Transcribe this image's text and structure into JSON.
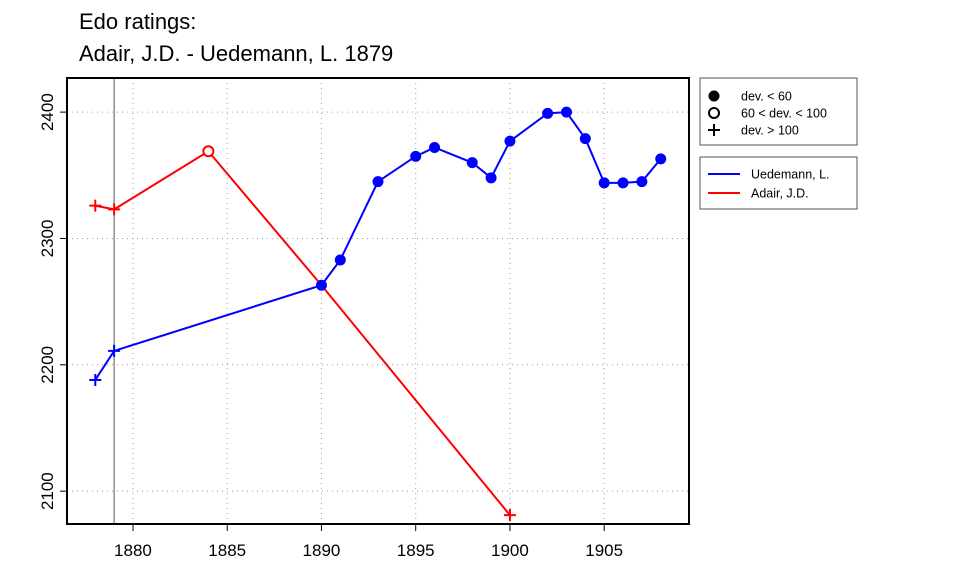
{
  "chart_data": {
    "type": "line",
    "title_lines": [
      "Edo ratings:",
      "Adair, J.D. - Uedemann, L. 1879"
    ],
    "xlabel": "",
    "ylabel": "",
    "xlim": [
      1876.5,
      1909.5
    ],
    "ylim": [
      2074,
      2427
    ],
    "x_ticks": [
      1880,
      1885,
      1890,
      1895,
      1900,
      1905
    ],
    "y_ticks": [
      2100,
      2200,
      2300,
      2400
    ],
    "grid": true,
    "reference_line_x": 1879,
    "marker_legend": [
      {
        "marker": "filled-circle",
        "label": "dev. < 60"
      },
      {
        "marker": "open-circle",
        "label": "60 < dev. < 100"
      },
      {
        "marker": "plus",
        "label": "dev. > 100"
      }
    ],
    "series_legend_placement": "right",
    "series": [
      {
        "name": "Uedemann, L.",
        "color": "#0000ff",
        "points": [
          {
            "x": 1878,
            "y": 2188,
            "marker": "plus"
          },
          {
            "x": 1879,
            "y": 2211,
            "marker": "plus"
          },
          {
            "x": 1890,
            "y": 2263,
            "marker": "filled-circle"
          },
          {
            "x": 1891,
            "y": 2283,
            "marker": "filled-circle"
          },
          {
            "x": 1893,
            "y": 2345,
            "marker": "filled-circle"
          },
          {
            "x": 1895,
            "y": 2365,
            "marker": "filled-circle"
          },
          {
            "x": 1896,
            "y": 2372,
            "marker": "filled-circle"
          },
          {
            "x": 1898,
            "y": 2360,
            "marker": "filled-circle"
          },
          {
            "x": 1899,
            "y": 2348,
            "marker": "filled-circle"
          },
          {
            "x": 1900,
            "y": 2377,
            "marker": "filled-circle"
          },
          {
            "x": 1902,
            "y": 2399,
            "marker": "filled-circle"
          },
          {
            "x": 1903,
            "y": 2400,
            "marker": "filled-circle"
          },
          {
            "x": 1904,
            "y": 2379,
            "marker": "filled-circle"
          },
          {
            "x": 1905,
            "y": 2344,
            "marker": "filled-circle"
          },
          {
            "x": 1906,
            "y": 2344,
            "marker": "filled-circle"
          },
          {
            "x": 1907,
            "y": 2345,
            "marker": "filled-circle"
          },
          {
            "x": 1908,
            "y": 2363,
            "marker": "filled-circle"
          }
        ]
      },
      {
        "name": "Adair, J.D.",
        "color": "#ff0000",
        "points": [
          {
            "x": 1878,
            "y": 2326,
            "marker": "plus"
          },
          {
            "x": 1879,
            "y": 2323,
            "marker": "plus"
          },
          {
            "x": 1884,
            "y": 2369,
            "marker": "open-circle"
          },
          {
            "x": 1890,
            "y": 2263,
            "marker": "none"
          },
          {
            "x": 1900,
            "y": 2081,
            "marker": "plus"
          }
        ]
      }
    ]
  }
}
